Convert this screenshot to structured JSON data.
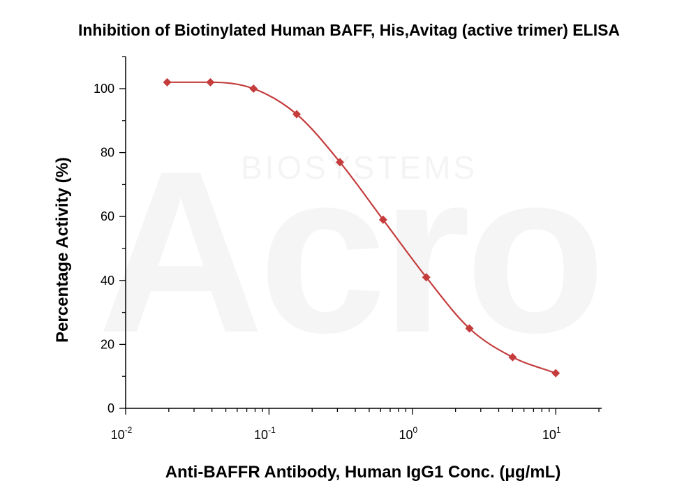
{
  "chart_data": {
    "type": "scatter",
    "title": "Inhibition of Biotinylated Human BAFF, His,Avitag (active trimer) ELISA",
    "xlabel": "Anti-BAFFR Antibody, Human IgG1 Conc. (μg/mL)",
    "ylabel": "Percentage Activity (%)",
    "x_scale": "log",
    "xlim": [
      0.01,
      20
    ],
    "ylim": [
      0,
      110
    ],
    "x_ticks": [
      {
        "base": "10",
        "exp": "-2",
        "value": 0.01
      },
      {
        "base": "10",
        "exp": "-1",
        "value": 0.1
      },
      {
        "base": "10",
        "exp": "0",
        "value": 1
      },
      {
        "base": "10",
        "exp": "1",
        "value": 10
      }
    ],
    "y_ticks": [
      "0",
      "20",
      "40",
      "60",
      "80",
      "100"
    ],
    "y_tick_values": [
      0,
      20,
      40,
      60,
      80,
      100
    ],
    "grid": false,
    "series": [
      {
        "marker": "diamond",
        "color": "#c43c3c",
        "fit": "4PL",
        "points": [
          {
            "x": 0.0195,
            "y": 102
          },
          {
            "x": 0.039,
            "y": 102
          },
          {
            "x": 0.078,
            "y": 100
          },
          {
            "x": 0.156,
            "y": 92
          },
          {
            "x": 0.3125,
            "y": 77
          },
          {
            "x": 0.625,
            "y": 59
          },
          {
            "x": 1.25,
            "y": 41
          },
          {
            "x": 2.5,
            "y": 25
          },
          {
            "x": 5,
            "y": 16
          },
          {
            "x": 10,
            "y": 11
          }
        ]
      }
    ],
    "watermark": [
      "Acro",
      "BIOSYSTEMS"
    ]
  }
}
